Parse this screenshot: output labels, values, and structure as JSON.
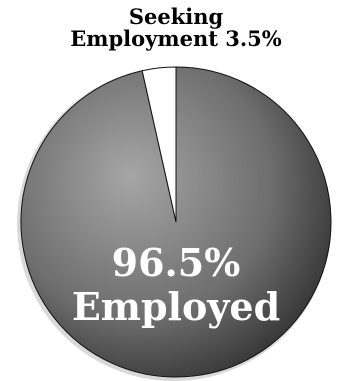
{
  "chart_data": {
    "type": "pie",
    "title": "",
    "slices": [
      {
        "label_lines": [
          "96.5%",
          "Employed"
        ],
        "value": 96.5,
        "color": "#7a7a7a",
        "label_color": "#ffffff"
      },
      {
        "label_lines": [
          "Seeking",
          "Employment 3.5%"
        ],
        "value": 3.5,
        "color": "#ffffff",
        "label_color": "#000000"
      }
    ],
    "legend": "none",
    "data_labels": true
  }
}
